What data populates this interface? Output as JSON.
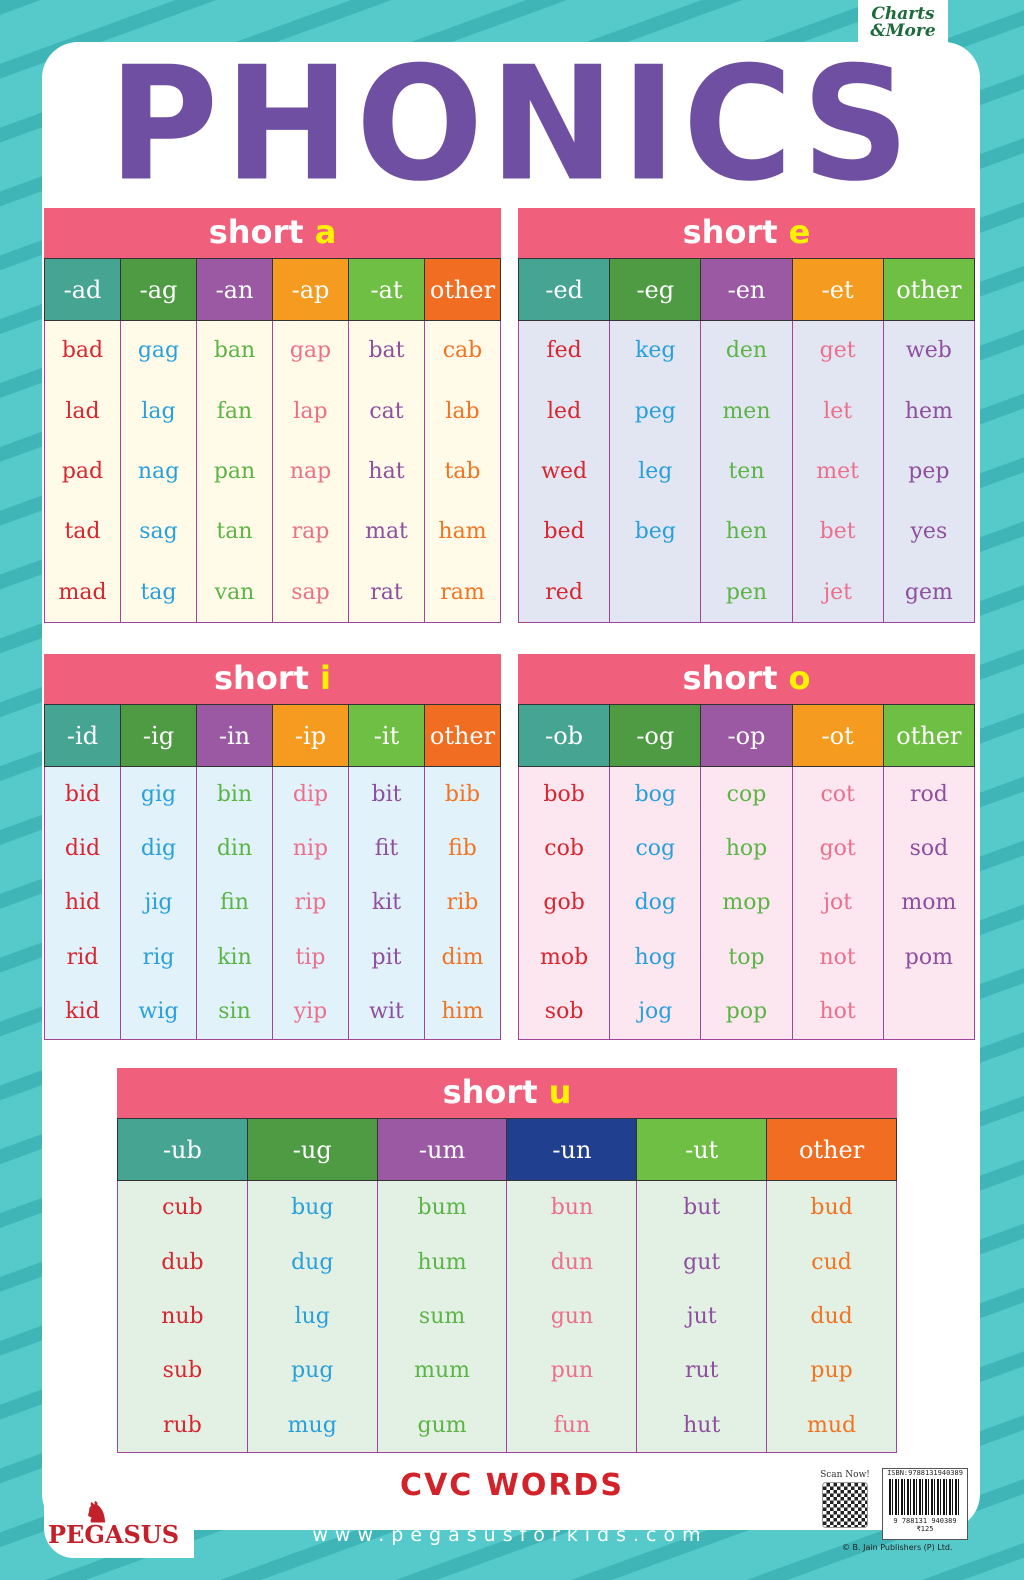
{
  "title": "PHONICS",
  "brand": "Charts & More",
  "footer": {
    "cvc": "CVC WORDS",
    "url": "www.pegasusforkids.com",
    "publisher_logo": "PEGASUS",
    "scan": "Scan Now!",
    "isbn": "ISBN:9788131940389",
    "barcode_number": "9 788131 940389",
    "price": "₹125",
    "copyright": "© B. Jain Publishers (P) Ltd."
  },
  "colors": {
    "title": "#6f4fa1",
    "banner": "#f0607c",
    "vowel": "#fff200",
    "words": [
      "#d7262f",
      "#2aa0da",
      "#5cb447",
      "#ec6f8c",
      "#8e4f9f",
      "#f07422"
    ]
  },
  "sections": [
    {
      "label": "short",
      "vowel": "a",
      "bg": "#fffbe8",
      "header_colors": [
        "#46a493",
        "#4e9b44",
        "#9b59a4",
        "#f59b1f",
        "#6fbf44",
        "#f06d22"
      ],
      "headers": [
        "-ad",
        "-ag",
        "-an",
        "-ap",
        "-at",
        "other"
      ],
      "rows": [
        [
          "bad",
          "gag",
          "ban",
          "gap",
          "bat",
          "cab"
        ],
        [
          "lad",
          "lag",
          "fan",
          "lap",
          "cat",
          "lab"
        ],
        [
          "pad",
          "nag",
          "pan",
          "nap",
          "hat",
          "tab"
        ],
        [
          "tad",
          "sag",
          "tan",
          "rap",
          "mat",
          "ham"
        ],
        [
          "mad",
          "tag",
          "van",
          "sap",
          "rat",
          "ram"
        ]
      ]
    },
    {
      "label": "short",
      "vowel": "e",
      "bg": "#e2e6f3",
      "header_colors": [
        "#46a493",
        "#4e9b44",
        "#9b59a4",
        "#f59b1f",
        "#6fbf44"
      ],
      "headers": [
        "-ed",
        "-eg",
        "-en",
        "-et",
        "other"
      ],
      "rows": [
        [
          "fed",
          "keg",
          "den",
          "get",
          "web"
        ],
        [
          "led",
          "peg",
          "men",
          "let",
          "hem"
        ],
        [
          "wed",
          "leg",
          "ten",
          "met",
          "pep"
        ],
        [
          "bed",
          "beg",
          "hen",
          "bet",
          "yes"
        ],
        [
          "red",
          "",
          "pen",
          "jet",
          "gem"
        ]
      ]
    },
    {
      "label": "short",
      "vowel": "i",
      "bg": "#e2f2fb",
      "header_colors": [
        "#46a493",
        "#4e9b44",
        "#9b59a4",
        "#f59b1f",
        "#6fbf44",
        "#f06d22"
      ],
      "headers": [
        "-id",
        "-ig",
        "-in",
        "-ip",
        "-it",
        "other"
      ],
      "rows": [
        [
          "bid",
          "gig",
          "bin",
          "dip",
          "bit",
          "bib"
        ],
        [
          "did",
          "dig",
          "din",
          "nip",
          "fit",
          "fib"
        ],
        [
          "hid",
          "jig",
          "fin",
          "rip",
          "kit",
          "rib"
        ],
        [
          "rid",
          "rig",
          "kin",
          "tip",
          "pit",
          "dim"
        ],
        [
          "kid",
          "wig",
          "sin",
          "yip",
          "wit",
          "him"
        ]
      ]
    },
    {
      "label": "short",
      "vowel": "o",
      "bg": "#fce6ef",
      "header_colors": [
        "#46a493",
        "#4e9b44",
        "#9b59a4",
        "#f59b1f",
        "#6fbf44"
      ],
      "headers": [
        "-ob",
        "-og",
        "-op",
        "-ot",
        "other"
      ],
      "rows": [
        [
          "bob",
          "bog",
          "cop",
          "cot",
          "rod"
        ],
        [
          "cob",
          "cog",
          "hop",
          "got",
          "sod"
        ],
        [
          "gob",
          "dog",
          "mop",
          "jot",
          "mom"
        ],
        [
          "mob",
          "hog",
          "top",
          "not",
          "pom"
        ],
        [
          "sob",
          "jog",
          "pop",
          "hot",
          ""
        ]
      ]
    },
    {
      "label": "short",
      "vowel": "u",
      "bg": "#e3f0e4",
      "header_colors": [
        "#46a493",
        "#4e9b44",
        "#9b59a4",
        "#213f8f",
        "#6fbf44",
        "#f06d22"
      ],
      "headers": [
        "-ub",
        "-ug",
        "-um",
        "-un",
        "-ut",
        "other"
      ],
      "rows": [
        [
          "cub",
          "bug",
          "bum",
          "bun",
          "but",
          "bud"
        ],
        [
          "dub",
          "dug",
          "hum",
          "dun",
          "gut",
          "cud"
        ],
        [
          "nub",
          "lug",
          "sum",
          "gun",
          "jut",
          "dud"
        ],
        [
          "sub",
          "pug",
          "mum",
          "pun",
          "rut",
          "pup"
        ],
        [
          "rub",
          "mug",
          "gum",
          "fun",
          "hut",
          "mud"
        ]
      ]
    }
  ]
}
